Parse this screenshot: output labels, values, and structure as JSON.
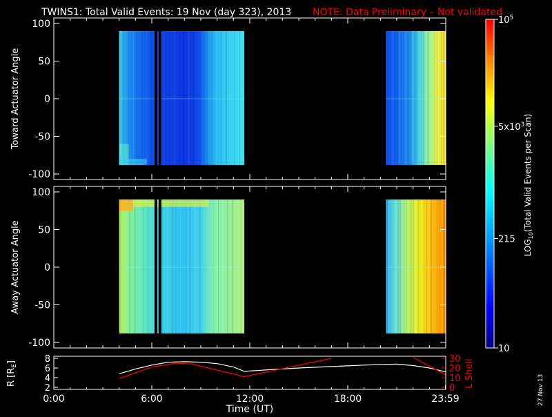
{
  "header": {
    "title": "TWINS1: Total Valid Events: 19 Nov (day 323), 2013",
    "note": "NOTE: Data Preliminary – Not validated"
  },
  "footer": {
    "date_stamp": "27 Nov 13"
  },
  "colors": {
    "background": "#000000",
    "axes": "#ffffff",
    "note": "#ff0000",
    "r_line": "#ffffff",
    "lshell_line": "#ff0000"
  },
  "chart_data": [
    {
      "type": "heatmap",
      "ylabel": "Toward Actuator Angle",
      "ylim": [
        -100,
        100
      ],
      "yticks": [
        100,
        50,
        0,
        -50,
        -100
      ],
      "xlim_hours": [
        0,
        24
      ],
      "data_blocks": [
        {
          "start": "04:00",
          "end": "11:40",
          "angle_range": [
            -88,
            90
          ]
        },
        {
          "start": "20:20",
          "end": "23:59",
          "angle_range": [
            -88,
            90
          ]
        }
      ],
      "gaps": [
        "06:15",
        "06:30"
      ]
    },
    {
      "type": "heatmap",
      "ylabel": "Away Actuator Angle",
      "ylim": [
        -100,
        100
      ],
      "yticks": [
        100,
        50,
        0,
        -50,
        -100
      ],
      "xlim_hours": [
        0,
        24
      ],
      "data_blocks": [
        {
          "start": "04:00",
          "end": "11:40",
          "angle_range": [
            -88,
            90
          ]
        },
        {
          "start": "20:20",
          "end": "23:59",
          "angle_range": [
            -88,
            90
          ]
        }
      ],
      "gaps": [
        "06:15",
        "06:30"
      ]
    },
    {
      "type": "line",
      "xlabel": "Time (UT)",
      "xticks": [
        "0:00",
        "6:00",
        "12:00",
        "18:00",
        "23:59"
      ],
      "ylabel_left": "R [R",
      "ylabel_left_sub": "E",
      "ylabel_left_end": "]",
      "ylim_left": [
        2,
        8
      ],
      "yticks_left": [
        2,
        4,
        6,
        8
      ],
      "ylabel_right": "L Shell",
      "ylim_right": [
        0,
        30
      ],
      "yticks_right": [
        0,
        10,
        20,
        30
      ],
      "series": [
        {
          "name": "R",
          "axis": "left",
          "x": [
            "04:00",
            "05:00",
            "06:00",
            "07:00",
            "08:00",
            "09:00",
            "10:00",
            "11:00",
            "11:40",
            "13:00",
            "15:00",
            "17:00",
            "19:00",
            "21:00",
            "22:00",
            "23:00",
            "23:59"
          ],
          "y": [
            4.8,
            5.8,
            6.6,
            7.2,
            7.3,
            7.2,
            6.9,
            6.2,
            5.3,
            5.6,
            6.0,
            6.3,
            6.6,
            6.8,
            6.5,
            6.0,
            5.2
          ]
        },
        {
          "name": "L Shell",
          "axis": "right",
          "x": [
            "04:00",
            "06:00",
            "07:30",
            "08:30",
            "11:40",
            "17:00",
            "22:00",
            "23:59"
          ],
          "y": [
            9,
            21,
            25,
            24,
            11,
            30,
            31,
            13
          ]
        }
      ]
    }
  ],
  "colorbar": {
    "label": "LOG",
    "label_sub": "10",
    "label_rest": "(Total Valid Events per Scan)",
    "ticks": [
      {
        "value": 10,
        "text": "10"
      },
      {
        "value": 215,
        "text": "215"
      },
      {
        "value": 5000,
        "text": "5x10",
        "sup": "3"
      },
      {
        "value": 100000,
        "text": "10",
        "sup": "5"
      }
    ],
    "range": [
      10,
      100000
    ],
    "stops": [
      "#000080",
      "#0000ff",
      "#0080ff",
      "#00ffff",
      "#80ff80",
      "#ffff00",
      "#ff8000",
      "#ff0000"
    ]
  }
}
